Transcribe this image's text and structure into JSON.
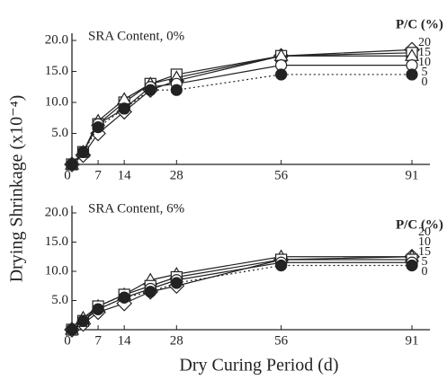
{
  "chart_data": [
    {
      "type": "line",
      "title": "SRA Content, 0%",
      "legend_title": "P/C (%)",
      "ylabel": "Drying Shrinkage (x10⁻⁴)",
      "x": [
        0,
        3,
        7,
        14,
        21,
        28,
        56,
        91
      ],
      "xlim": [
        0,
        91
      ],
      "xticks": [
        0,
        7,
        14,
        28,
        56,
        91
      ],
      "ylim": [
        0,
        20
      ],
      "yticks": [
        {
          "value": 5,
          "label": "5.0"
        },
        {
          "value": 10,
          "label": "10.0"
        },
        {
          "value": 15,
          "label": "15.0"
        },
        {
          "value": 20,
          "label": "20.0"
        }
      ],
      "series": [
        {
          "name": "20",
          "marker": "diamond",
          "color": "#222",
          "values": [
            0,
            1.5,
            5,
            8.5,
            12,
            13.5,
            17.5,
            18.5
          ]
        },
        {
          "name": "15",
          "marker": "square",
          "color": "#222",
          "values": [
            0,
            2,
            6.5,
            10,
            13,
            14.5,
            17.5,
            18
          ]
        },
        {
          "name": "10",
          "marker": "triangle",
          "color": "#222",
          "values": [
            0,
            2,
            7,
            10.5,
            13,
            14,
            17.5,
            17.5
          ]
        },
        {
          "name": "5",
          "marker": "circle",
          "color": "#222",
          "values": [
            0,
            2,
            6.5,
            9,
            12.5,
            13,
            16,
            16
          ]
        },
        {
          "name": "0",
          "marker": "filled-circle",
          "dashed": true,
          "color": "#222",
          "values": [
            0,
            2,
            6,
            9,
            12,
            12,
            14.5,
            14.5
          ]
        }
      ]
    },
    {
      "type": "line",
      "title": "SRA Content, 6%",
      "legend_title": "P/C (%)",
      "xlabel": "Dry Curing Period (d)",
      "x": [
        0,
        3,
        7,
        14,
        21,
        28,
        56,
        91
      ],
      "xlim": [
        0,
        91
      ],
      "xticks": [
        0,
        7,
        14,
        28,
        56,
        91
      ],
      "ylim": [
        0,
        20
      ],
      "yticks": [
        {
          "value": 5,
          "label": "5.0"
        },
        {
          "value": 10,
          "label": "10.0"
        },
        {
          "value": 15,
          "label": "15.0"
        },
        {
          "value": 20,
          "label": "20.0"
        }
      ],
      "series": [
        {
          "name": "20",
          "marker": "diamond",
          "color": "#222",
          "values": [
            0,
            1,
            3,
            4.5,
            6.5,
            7.5,
            12,
            12.5
          ]
        },
        {
          "name": "10",
          "marker": "triangle",
          "color": "#222",
          "values": [
            0,
            2,
            4,
            6,
            8.5,
            9.5,
            12.5,
            12.5
          ]
        },
        {
          "name": "15",
          "marker": "square",
          "color": "#222",
          "values": [
            0,
            1.5,
            4,
            6,
            7.5,
            9,
            12,
            12
          ]
        },
        {
          "name": "5",
          "marker": "circle",
          "color": "#222",
          "values": [
            0,
            1.5,
            3.5,
            5.5,
            7,
            8.5,
            11.5,
            11.5
          ]
        },
        {
          "name": "0",
          "marker": "filled-circle",
          "dashed": true,
          "color": "#222",
          "values": [
            0,
            1.5,
            3.5,
            5.5,
            6.5,
            8,
            11,
            11
          ]
        }
      ]
    }
  ]
}
